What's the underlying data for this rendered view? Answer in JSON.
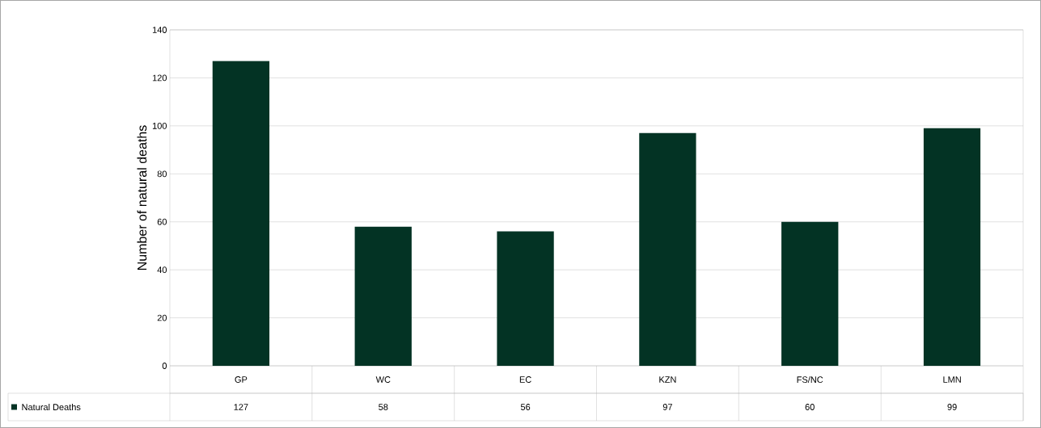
{
  "chart_data": {
    "type": "bar",
    "ylabel": "Number of natural deaths",
    "categories": [
      "GP",
      "WC",
      "EC",
      "KZN",
      "FS/NC",
      "LMN"
    ],
    "series": [
      {
        "name": "Natural Deaths",
        "color": "#033324",
        "values": [
          127,
          58,
          56,
          97,
          60,
          99
        ]
      }
    ],
    "ylim": [
      0,
      140
    ],
    "yticks": [
      0,
      20,
      40,
      60,
      80,
      100,
      120,
      140
    ],
    "grid": "y",
    "legend": "bottom",
    "data_labels": true
  }
}
